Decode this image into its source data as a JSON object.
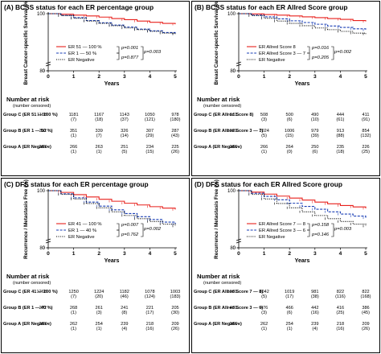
{
  "panels": [
    {
      "id": "A",
      "title": "(A) BCSS status for each ER percentage group",
      "ylabel": "Breast Cancer-specific Survival (%)",
      "legend": {
        "items": [
          "ER 51 — 100 %",
          "ER 1 — 50 %",
          "ER Negative"
        ],
        "p_left": [
          "p=0.001",
          "p=0.877"
        ],
        "p_right": "p=0.003"
      },
      "risk_title": "Number at risk",
      "risk_sub": "(number censored)",
      "risk_rows": [
        {
          "label": "Group C (ER 51 — 100 %)",
          "first": "1188",
          "values": [
            "1181",
            "1167",
            "1143",
            "1050",
            "978"
          ],
          "censored": [
            "(7)",
            "(18)",
            "(37)",
            "(121)",
            "(180)"
          ]
        },
        {
          "label": "Group B (ER 1 — 50 %)",
          "first": "352",
          "values": [
            "351",
            "339",
            "326",
            "307",
            "287"
          ],
          "censored": [
            "(1)",
            "(7)",
            "(14)",
            "(29)",
            "(43)"
          ]
        },
        {
          "label": "Group A (ER Negative)",
          "first": "267",
          "values": [
            "266",
            "263",
            "251",
            "234",
            "225"
          ],
          "censored": [
            "(1)",
            "(1)",
            "(5)",
            "(15)",
            "(26)"
          ]
        }
      ]
    },
    {
      "id": "B",
      "title": "(B) BCSS status for each ER Allred Score group",
      "ylabel": "Breast Cancer-specific Survival (%)",
      "legend": {
        "items": [
          "ER Allred Score 8",
          "ER Allred Score 3 — 7",
          "ER Negative"
        ],
        "p_left": [
          "p=0.016",
          "p=0.205"
        ],
        "p_right": "p=0.002"
      },
      "risk_title": "Number at risk",
      "risk_sub": "(number censored)",
      "risk_rows": [
        {
          "label": "Group C (ER Allred Score 8)",
          "first": "511",
          "values": [
            "508",
            "500",
            "490",
            "444",
            "411"
          ],
          "censored": [
            "(3)",
            "(6)",
            "(10)",
            "(61)",
            "(91)"
          ]
        },
        {
          "label": "Group B (ER Allred Score 3 — 7)",
          "first": "1029",
          "values": [
            "1024",
            "1006",
            "979",
            "913",
            "854"
          ],
          "censored": [
            "(5)",
            "(15)",
            "(39)",
            "(88)",
            "(132)"
          ]
        },
        {
          "label": "Group A (ER Negative)",
          "first": "267",
          "values": [
            "266",
            "264",
            "250",
            "235",
            "226"
          ],
          "censored": [
            "(1)",
            "(0)",
            "(6)",
            "(18)",
            "(25)"
          ]
        }
      ]
    },
    {
      "id": "C",
      "title": "(C) DFS status for each ER percentage group",
      "ylabel": "Recurrence / Metastasis Free (%)",
      "legend": {
        "items": [
          "ER 41 — 100 %",
          "ER 1 — 40 %",
          "ER Negative"
        ],
        "p_left": [
          "p=0.007",
          "p=0.762"
        ],
        "p_right": "p=0.002"
      },
      "risk_title": "Number at risk",
      "risk_sub": "(number censored)",
      "risk_rows": [
        {
          "label": "Group C (ER 41 — 100 %)",
          "first": "1268",
          "values": [
            "1250",
            "1224",
            "1182",
            "1078",
            "1003"
          ],
          "censored": [
            "(7)",
            "(20)",
            "(46)",
            "(124)",
            "(183)"
          ]
        },
        {
          "label": "Group B (ER 1 — 40 %)",
          "first": "272",
          "values": [
            "268",
            "261",
            "241",
            "221",
            "205"
          ],
          "censored": [
            "(1)",
            "(3)",
            "(8)",
            "(17)",
            "(30)"
          ]
        },
        {
          "label": "Group A (ER Negative)",
          "first": "267",
          "values": [
            "262",
            "254",
            "239",
            "218",
            "209"
          ],
          "censored": [
            "(1)",
            "(1)",
            "(4)",
            "(16)",
            "(26)"
          ]
        }
      ]
    },
    {
      "id": "D",
      "title": "(D) DFS status for each ER Allred Score group",
      "ylabel": "Recurrence / Metastasis Free (%)",
      "legend": {
        "items": [
          "ER Allred Score 7 — 8",
          "ER Allred Score 3 — 6",
          "ER Negative"
        ],
        "p_left": [
          "p=0.158",
          "p=0.146"
        ],
        "p_right": "p=0.003"
      },
      "risk_title": "Number at risk",
      "risk_sub": "(number censored)",
      "risk_rows": [
        {
          "label": "Group C (ER Allred Score 7 — 8)",
          "first": "1060",
          "values": [
            "1042",
            "1019",
            "981",
            "822",
            "822"
          ],
          "censored": [
            "(5)",
            "(17)",
            "(38)",
            "(116)",
            "(168)"
          ]
        },
        {
          "label": "Group B (ER Allred Score 3 — 6)",
          "first": "480",
          "values": [
            "476",
            "466",
            "442",
            "416",
            "386"
          ],
          "censored": [
            "(3)",
            "(6)",
            "(16)",
            "(25)",
            "(45)"
          ]
        },
        {
          "label": "Group A (ER Negative)",
          "first": "267",
          "values": [
            "262",
            "254",
            "239",
            "218",
            "209"
          ],
          "censored": [
            "(1)",
            "(1)",
            "(4)",
            "(16)",
            "(26)"
          ]
        }
      ]
    }
  ],
  "chart_data": [
    {
      "type": "line",
      "title": "(A) BCSS status for each ER percentage group",
      "xlabel": "Years",
      "ylabel": "Breast Cancer-specific Survival (%)",
      "xlim": [
        0,
        5
      ],
      "ylim": [
        0,
        100
      ],
      "x_ticks": [
        0,
        1,
        2,
        3,
        4,
        5
      ],
      "y_ticks": [
        0,
        20,
        40,
        60,
        80,
        100
      ],
      "legend_position": "bottom-left",
      "series": [
        {
          "name": "ER 51 — 100 %",
          "color": "#e8211c",
          "dash": "solid",
          "x": [
            0,
            0.5,
            1,
            1.5,
            2,
            2.5,
            3,
            3.5,
            4,
            4.5,
            5
          ],
          "values": [
            100,
            99.8,
            99.5,
            99.2,
            98.8,
            98.3,
            97.9,
            97.4,
            97.0,
            96.6,
            96.3
          ]
        },
        {
          "name": "ER 1 — 50 %",
          "color": "#1a3fb5",
          "dash": "dashed",
          "x": [
            0,
            0.5,
            1,
            1.5,
            2,
            2.5,
            3,
            3.5,
            4,
            4.5,
            5
          ],
          "values": [
            100,
            99.4,
            98.6,
            97.6,
            96.8,
            96.0,
            95.3,
            94.6,
            94.0,
            93.4,
            93.0
          ]
        },
        {
          "name": "ER Negative",
          "color": "#000000",
          "dash": "dotted",
          "x": [
            0,
            0.5,
            1,
            1.5,
            2,
            2.5,
            3,
            3.5,
            4,
            4.5,
            5
          ],
          "values": [
            100,
            99.3,
            98.4,
            97.4,
            96.6,
            95.8,
            95.0,
            94.4,
            93.8,
            93.2,
            92.9
          ]
        }
      ]
    },
    {
      "type": "line",
      "title": "(B) BCSS status for each ER Allred Score group",
      "xlabel": "Years",
      "ylabel": "Breast Cancer-specific Survival (%)",
      "xlim": [
        0,
        5
      ],
      "ylim": [
        0,
        100
      ],
      "x_ticks": [
        0,
        1,
        2,
        3,
        4,
        5
      ],
      "y_ticks": [
        0,
        20,
        40,
        60,
        80,
        100
      ],
      "legend_position": "bottom-left",
      "series": [
        {
          "name": "ER Allred Score 8",
          "color": "#e8211c",
          "dash": "solid",
          "x": [
            0,
            0.5,
            1,
            1.5,
            2,
            2.5,
            3,
            3.5,
            4,
            4.5,
            5
          ],
          "values": [
            100,
            99.9,
            99.7,
            99.5,
            99.2,
            98.9,
            98.6,
            98.3,
            98.0,
            97.6,
            97.3
          ]
        },
        {
          "name": "ER Allred Score 3 — 7",
          "color": "#1a3fb5",
          "dash": "dashed",
          "x": [
            0,
            0.5,
            1,
            1.5,
            2,
            2.5,
            3,
            3.5,
            4,
            4.5,
            5
          ],
          "values": [
            100,
            99.5,
            98.9,
            98.2,
            97.5,
            96.9,
            96.3,
            95.7,
            95.2,
            94.7,
            94.3
          ]
        },
        {
          "name": "ER Negative",
          "color": "#000000",
          "dash": "dotted",
          "x": [
            0,
            0.5,
            1,
            1.5,
            2,
            2.5,
            3,
            3.5,
            4,
            4.5,
            5
          ],
          "values": [
            100,
            99.3,
            98.4,
            97.4,
            96.6,
            95.8,
            95.0,
            94.4,
            93.8,
            93.2,
            92.9
          ]
        }
      ]
    },
    {
      "type": "line",
      "title": "(C) DFS status for each ER percentage group",
      "xlabel": "Years",
      "ylabel": "Recurrence / Metastasis Free (%)",
      "xlim": [
        0,
        5
      ],
      "ylim": [
        0,
        100
      ],
      "x_ticks": [
        0,
        1,
        2,
        3,
        4,
        5
      ],
      "y_ticks": [
        0,
        20,
        40,
        60,
        80,
        100
      ],
      "legend_position": "bottom-left",
      "series": [
        {
          "name": "ER 41 — 100 %",
          "color": "#e8211c",
          "dash": "solid",
          "x": [
            0,
            0.5,
            1,
            1.5,
            2,
            2.5,
            3,
            3.5,
            4,
            4.5,
            5
          ],
          "values": [
            100,
            99.4,
            98.6,
            97.8,
            97.0,
            96.3,
            95.6,
            95.0,
            94.4,
            93.9,
            93.4
          ]
        },
        {
          "name": "ER 1 — 40 %",
          "color": "#1a3fb5",
          "dash": "dashed",
          "x": [
            0,
            0.5,
            1,
            1.5,
            2,
            2.5,
            3,
            3.5,
            4,
            4.5,
            5
          ],
          "values": [
            100,
            98.9,
            97.5,
            96.0,
            94.6,
            93.3,
            92.0,
            90.9,
            89.9,
            89.0,
            88.3
          ]
        },
        {
          "name": "ER Negative",
          "color": "#000000",
          "dash": "dotted",
          "x": [
            0,
            0.5,
            1,
            1.5,
            2,
            2.5,
            3,
            3.5,
            4,
            4.5,
            5
          ],
          "values": [
            100,
            98.7,
            97.1,
            95.5,
            94.0,
            92.6,
            91.3,
            90.2,
            89.2,
            88.3,
            87.6
          ]
        }
      ]
    },
    {
      "type": "line",
      "title": "(D) DFS status for each ER Allred Score group",
      "xlabel": "Years",
      "ylabel": "Recurrence / Metastasis Free (%)",
      "xlim": [
        0,
        5
      ],
      "ylim": [
        0,
        100
      ],
      "x_ticks": [
        0,
        1,
        2,
        3,
        4,
        5
      ],
      "y_ticks": [
        0,
        20,
        40,
        60,
        80,
        100
      ],
      "legend_position": "bottom-left",
      "series": [
        {
          "name": "ER Allred Score 7 — 8",
          "color": "#e8211c",
          "dash": "solid",
          "x": [
            0,
            0.5,
            1,
            1.5,
            2,
            2.5,
            3,
            3.5,
            4,
            4.5,
            5
          ],
          "values": [
            100,
            99.5,
            98.8,
            98.1,
            97.4,
            96.7,
            96.0,
            95.4,
            94.8,
            94.3,
            93.8
          ]
        },
        {
          "name": "ER Allred Score 3 — 6",
          "color": "#1a3fb5",
          "dash": "dashed",
          "x": [
            0,
            0.5,
            1,
            1.5,
            2,
            2.5,
            3,
            3.5,
            4,
            4.5,
            5
          ],
          "values": [
            100,
            99.1,
            98.0,
            96.8,
            95.6,
            94.5,
            93.5,
            92.6,
            91.8,
            91.1,
            90.5
          ]
        },
        {
          "name": "ER Negative",
          "color": "#000000",
          "dash": "dotted",
          "x": [
            0,
            0.5,
            1,
            1.5,
            2,
            2.5,
            3,
            3.5,
            4,
            4.5,
            5
          ],
          "values": [
            100,
            98.7,
            97.1,
            95.5,
            94.0,
            92.6,
            91.3,
            90.2,
            89.2,
            88.3,
            87.6
          ]
        }
      ]
    }
  ]
}
